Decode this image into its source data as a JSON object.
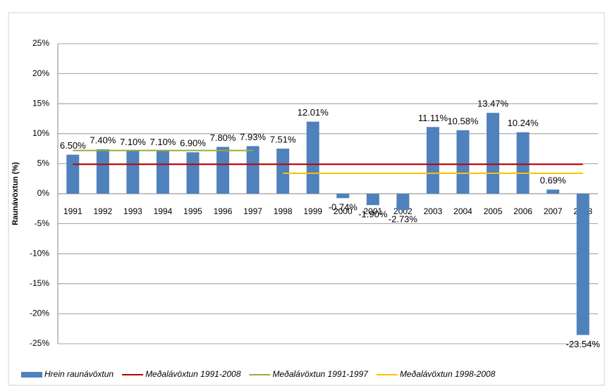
{
  "chart_data": {
    "type": "bar",
    "y_label": "Raunávöxtun (%)",
    "categories": [
      "1991",
      "1992",
      "1993",
      "1994",
      "1995",
      "1996",
      "1997",
      "1998",
      "1999",
      "2000",
      "2001",
      "2002",
      "2003",
      "2004",
      "2005",
      "2006",
      "2007",
      "2008"
    ],
    "series": [
      {
        "name": "Hrein raunávöxtun",
        "type": "bar",
        "color": "#4f81bd",
        "values": [
          6.5,
          7.4,
          7.1,
          7.1,
          6.9,
          7.8,
          7.93,
          7.51,
          12.01,
          -0.74,
          -1.9,
          -2.73,
          11.11,
          10.58,
          13.47,
          10.24,
          0.69,
          -23.54
        ],
        "value_labels": [
          "6.50%",
          "7.40%",
          "7.10%",
          "7.10%",
          "6.90%",
          "7.80%",
          "7.93%",
          "7.51%",
          "12.01%",
          "-0.74%",
          "-1.90%",
          "-2.73%",
          "11.11%",
          "10.58%",
          "13.47%",
          "10.24%",
          "0.69%",
          "-23.54%"
        ]
      },
      {
        "name": "Meðalávöxtun 1991-2008",
        "type": "line",
        "color": "#c00000",
        "values": [
          4.9,
          4.9,
          4.9,
          4.9,
          4.9,
          4.9,
          4.9,
          4.9,
          4.9,
          4.9,
          4.9,
          4.9,
          4.9,
          4.9,
          4.9,
          4.9,
          4.9,
          4.9
        ]
      },
      {
        "name": "Meðalávöxtun 1991-1997",
        "type": "line",
        "color": "#9bab3c",
        "values": [
          7.2,
          7.2,
          7.2,
          7.2,
          7.2,
          7.2,
          7.2,
          null,
          null,
          null,
          null,
          null,
          null,
          null,
          null,
          null,
          null,
          null
        ]
      },
      {
        "name": "Meðalávöxtun 1998-2008",
        "type": "line",
        "color": "#ffc000",
        "values": [
          null,
          null,
          null,
          null,
          null,
          null,
          null,
          3.4,
          3.4,
          3.4,
          3.4,
          3.4,
          3.4,
          3.4,
          3.4,
          3.4,
          3.4,
          3.4
        ]
      }
    ],
    "ylim": [
      -25,
      25
    ],
    "yticks": [
      {
        "value": -25,
        "label": "-25%"
      },
      {
        "value": -20,
        "label": "-20%"
      },
      {
        "value": -15,
        "label": "-15%"
      },
      {
        "value": -10,
        "label": "-10%"
      },
      {
        "value": -5,
        "label": "-5%"
      },
      {
        "value": 0,
        "label": "0%"
      },
      {
        "value": 5,
        "label": "5%"
      },
      {
        "value": 10,
        "label": "10%"
      },
      {
        "value": 15,
        "label": "15%"
      },
      {
        "value": 20,
        "label": "20%"
      },
      {
        "value": 25,
        "label": "25%"
      }
    ],
    "grid": true,
    "legend": "bottom"
  }
}
